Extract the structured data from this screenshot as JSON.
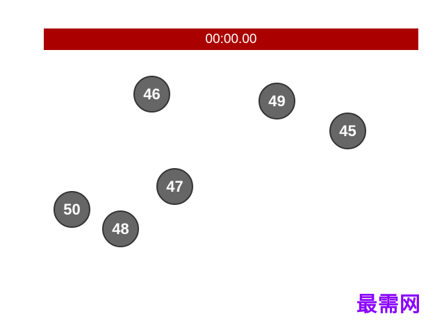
{
  "timer": {
    "value": "00:00.00",
    "color": "#aa0000"
  },
  "balls": [
    {
      "number": "46"
    },
    {
      "number": "49"
    },
    {
      "number": "45"
    },
    {
      "number": "47"
    },
    {
      "number": "50"
    },
    {
      "number": "48"
    }
  ],
  "ball_color": "#666666",
  "watermark": {
    "text": "最需网",
    "color": "#8a00ff"
  }
}
